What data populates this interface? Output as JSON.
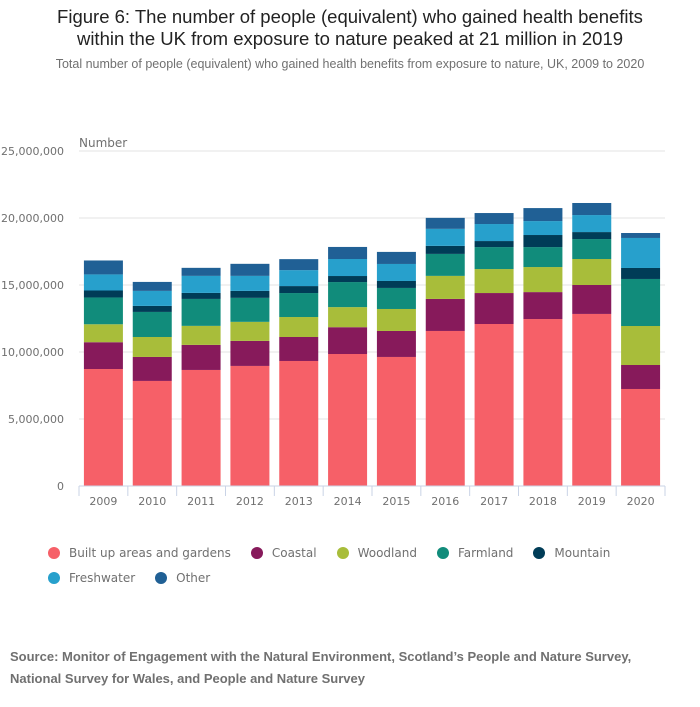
{
  "title_line1": "Figure 6: The number of people (equivalent) who gained health benefits",
  "title_line2": "within the UK from exposure to nature peaked at 21 million in 2019",
  "subtitle": "Total number of people (equivalent) who gained health benefits from exposure to nature, UK, 2009 to 2020",
  "source": "Source: Monitor of Engagement with the Natural Environment, Scotland’s People and Nature Survey, National Survey for Wales, and People and Nature Survey",
  "chart_data": {
    "type": "bar",
    "stacked": true,
    "title": "Figure 6: The number of people (equivalent) who gained health benefits within the UK from exposure to nature peaked at 21 million in 2019",
    "subtitle": "Total number of people (equivalent) who gained health benefits from exposure to nature, UK, 2009 to 2020",
    "xlabel": "",
    "ylabel": "Number",
    "ylim": [
      0,
      25000000
    ],
    "yticks": [
      0,
      5000000,
      10000000,
      15000000,
      20000000,
      25000000
    ],
    "ytick_labels": [
      "0",
      "5,000,000",
      "10,000,000",
      "15,000,000",
      "20,000,000",
      "25,000,000"
    ],
    "grid": true,
    "legend_position": "bottom",
    "categories": [
      "2009",
      "2010",
      "2011",
      "2012",
      "2013",
      "2014",
      "2015",
      "2016",
      "2017",
      "2018",
      "2019",
      "2020"
    ],
    "series": [
      {
        "name": "Built up areas and gardens",
        "color": "#f66068",
        "values": [
          8730000,
          7840000,
          8660000,
          8960000,
          9330000,
          9850000,
          9630000,
          11570000,
          12090000,
          12460000,
          12840000,
          7240000
        ]
      },
      {
        "name": "Coastal",
        "color": "#871a5b",
        "values": [
          2000000,
          1790000,
          1870000,
          1870000,
          1790000,
          2000000,
          1940000,
          2390000,
          2310000,
          2010000,
          2160000,
          1790000
        ]
      },
      {
        "name": "Woodland",
        "color": "#a8bd3a",
        "values": [
          1340000,
          1490000,
          1420000,
          1420000,
          1490000,
          1500000,
          1640000,
          1720000,
          1790000,
          1870000,
          1940000,
          2910000
        ]
      },
      {
        "name": "Farmland",
        "color": "#118c7b",
        "values": [
          2000000,
          1870000,
          2010000,
          1790000,
          1790000,
          1870000,
          1570000,
          1640000,
          1640000,
          1490000,
          1490000,
          3510000
        ]
      },
      {
        "name": "Mountain",
        "color": "#003c57",
        "values": [
          520000,
          450000,
          450000,
          520000,
          520000,
          450000,
          520000,
          600000,
          450000,
          900000,
          520000,
          820000
        ]
      },
      {
        "name": "Freshwater",
        "color": "#27a0cc",
        "values": [
          1200000,
          1120000,
          1270000,
          1120000,
          1190000,
          1270000,
          1270000,
          1270000,
          1270000,
          1040000,
          1270000,
          2240000
        ]
      },
      {
        "name": "Other",
        "color": "#206095",
        "values": [
          1040000,
          670000,
          600000,
          900000,
          820000,
          900000,
          900000,
          820000,
          820000,
          970000,
          900000,
          370000
        ]
      }
    ]
  }
}
